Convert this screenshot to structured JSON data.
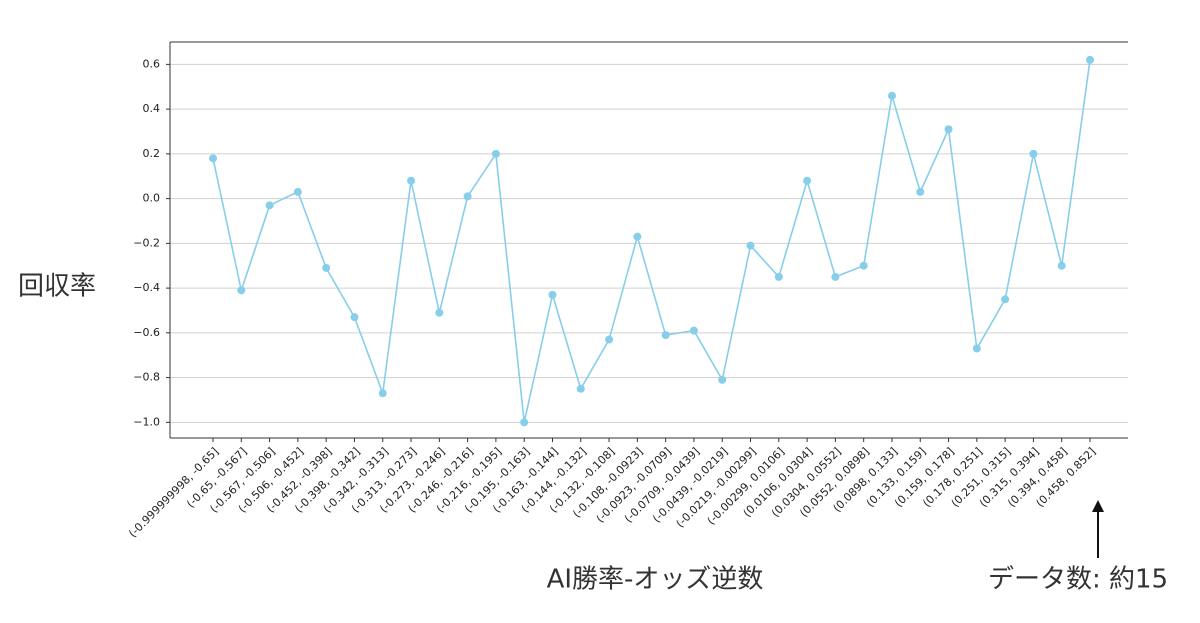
{
  "chart_data": {
    "type": "line",
    "y_label": "回収率",
    "x_label": "AI勝率-オッズ逆数",
    "annotation": "データ数: 約15",
    "color": "#87ceeb",
    "grid": true,
    "categories": [
      "(-0.999999998, -0.65]",
      "(-0.65, -0.567]",
      "(-0.567, -0.506]",
      "(-0.506, -0.452]",
      "(-0.452, -0.398]",
      "(-0.398, -0.342]",
      "(-0.342, -0.313]",
      "(-0.313, -0.273]",
      "(-0.273, -0.246]",
      "(-0.246, -0.216]",
      "(-0.216, -0.195]",
      "(-0.195, -0.163]",
      "(-0.163, -0.144]",
      "(-0.144, -0.132]",
      "(-0.132, -0.108]",
      "(-0.108, -0.0923]",
      "(-0.0923, -0.0709]",
      "(-0.0709, -0.0439]",
      "(-0.0439, -0.0219]",
      "(-0.0219, -0.00299]",
      "(-0.00299, 0.0106]",
      "(0.0106, 0.0304]",
      "(0.0304, 0.0552]",
      "(0.0552, 0.0898]",
      "(0.0898, 0.133]",
      "(0.133, 0.159]",
      "(0.159, 0.178]",
      "(0.178, 0.251]",
      "(0.251, 0.315]",
      "(0.315, 0.394]",
      "(0.394, 0.458]",
      "(0.458, 0.852]"
    ],
    "values": [
      0.18,
      -0.41,
      -0.03,
      0.03,
      -0.31,
      -0.53,
      -0.87,
      0.08,
      -0.51,
      0.01,
      0.2,
      -1.0,
      -0.43,
      -0.85,
      -0.63,
      -0.17,
      -0.61,
      -0.59,
      -0.81,
      -0.21,
      -0.35,
      0.08,
      -0.35,
      -0.3,
      0.46,
      0.03,
      0.31,
      -0.67,
      -0.45,
      0.2,
      -0.3,
      0.62
    ],
    "ylim": [
      -1.07,
      0.7
    ],
    "yticks": [
      {
        "value": -1.0,
        "label": "−1.0"
      },
      {
        "value": -0.8,
        "label": "−0.8"
      },
      {
        "value": -0.6,
        "label": "−0.6"
      },
      {
        "value": -0.4,
        "label": "−0.4"
      },
      {
        "value": -0.2,
        "label": "−0.2"
      },
      {
        "value": 0,
        "label": "0.0"
      },
      0.2,
      0.4,
      0.6
    ]
  }
}
